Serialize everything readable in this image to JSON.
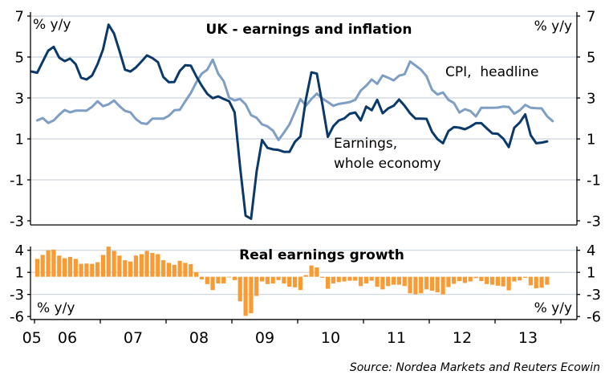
{
  "chart_data": [
    {
      "type": "line",
      "title": "UK - earnings and inflation",
      "ylabel_left": "% y/y",
      "ylabel_right": "% y/y",
      "ylim": [
        -3.2,
        7
      ],
      "yticks": [
        7,
        5,
        3,
        1,
        -1,
        -3
      ],
      "ytick_labels": [
        "7",
        "5",
        "3",
        "1",
        "-1",
        "-3"
      ],
      "grid": true,
      "frequency": "monthly",
      "series": [
        {
          "label": "CPI,  headline",
          "start": "2006-01",
          "color": "#7e9ec4",
          "values": [
            1.9,
            2.02,
            1.78,
            1.9,
            2.18,
            2.41,
            2.3,
            2.38,
            2.38,
            2.38,
            2.57,
            2.84,
            2.6,
            2.69,
            2.88,
            2.6,
            2.37,
            2.3,
            1.97,
            1.77,
            1.73,
            1.99,
            1.99,
            1.99,
            2.13,
            2.4,
            2.42,
            2.84,
            3.24,
            3.76,
            4.19,
            4.38,
            4.87,
            4.19,
            3.82,
            3.01,
            2.88,
            2.95,
            2.69,
            2.16,
            2.03,
            1.71,
            1.61,
            1.4,
            0.95,
            1.31,
            1.71,
            2.32,
            2.95,
            2.62,
            2.95,
            3.21,
            2.97,
            2.8,
            2.62,
            2.71,
            2.75,
            2.8,
            2.91,
            3.36,
            3.6,
            3.9,
            3.69,
            4.1,
            3.99,
            3.86,
            4.09,
            4.16,
            4.78,
            4.58,
            4.38,
            4.06,
            3.4,
            3.17,
            3.27,
            2.91,
            2.75,
            2.29,
            2.45,
            2.36,
            2.1,
            2.52,
            2.52,
            2.52,
            2.53,
            2.58,
            2.56,
            2.23,
            2.4,
            2.66,
            2.52,
            2.5,
            2.49,
            2.1,
            1.87
          ]
        },
        {
          "label_lines": [
            "Earnings,",
            "whole economy"
          ],
          "start": "2005-12",
          "color": "#0b3a6a",
          "values": [
            4.29,
            4.23,
            4.78,
            5.31,
            5.5,
            4.97,
            4.8,
            4.92,
            4.65,
            3.99,
            3.9,
            4.1,
            4.65,
            5.37,
            6.58,
            6.15,
            5.3,
            4.38,
            4.29,
            4.49,
            4.78,
            5.08,
            4.95,
            4.75,
            4.02,
            3.77,
            3.78,
            4.32,
            4.6,
            4.58,
            4.06,
            3.6,
            3.2,
            2.99,
            3.08,
            2.95,
            2.84,
            2.3,
            -0.4,
            -2.75,
            -2.9,
            -0.6,
            0.95,
            0.56,
            0.49,
            0.46,
            0.37,
            0.37,
            0.86,
            1.12,
            2.95,
            4.25,
            4.19,
            2.69,
            1.1,
            1.62,
            1.9,
            2.0,
            2.23,
            2.29,
            1.9,
            2.58,
            2.4,
            2.91,
            2.25,
            2.49,
            2.62,
            2.92,
            2.62,
            2.25,
            1.99,
            1.99,
            1.98,
            1.35,
            0.99,
            0.79,
            1.38,
            1.58,
            1.55,
            1.47,
            1.6,
            1.77,
            1.77,
            1.51,
            1.27,
            1.25,
            1.01,
            0.6,
            1.54,
            1.8,
            2.2,
            1.18,
            0.79,
            0.82,
            0.88
          ]
        }
      ]
    },
    {
      "type": "bar",
      "title": "Real earnings growth",
      "ylabel_left": "% y/y",
      "ylabel_right": "% y/y",
      "ylim": [
        -6.45,
        4
      ],
      "yticks": [
        4,
        0.667,
        -2.667,
        -6
      ],
      "ytick_labels": [
        "4",
        "1",
        "-3",
        "-6"
      ],
      "grid": true,
      "frequency": "monthly",
      "series": [
        {
          "start": "2006-01",
          "color": "#f99a32",
          "values": [
            2.7,
            3.3,
            4.0,
            4.1,
            3.2,
            2.8,
            3.0,
            2.7,
            1.95,
            2.0,
            1.95,
            2.2,
            3.3,
            4.55,
            3.9,
            3.2,
            2.5,
            2.3,
            3.2,
            3.4,
            3.9,
            3.6,
            3.4,
            2.5,
            2.1,
            1.8,
            2.4,
            2.1,
            1.9,
            0.7,
            -0.4,
            -1.1,
            -2.0,
            -1.0,
            -1.0,
            -0.1,
            -0.5,
            -3.7,
            -5.9,
            -5.5,
            -2.9,
            -0.7,
            -1.1,
            -1.0,
            -0.5,
            -1.0,
            -1.5,
            -1.6,
            -2.0,
            0.25,
            1.7,
            1.4,
            -0.15,
            -1.8,
            -1.0,
            -0.8,
            -0.7,
            -0.6,
            -0.6,
            -1.4,
            -1.0,
            -0.6,
            -1.5,
            -1.9,
            -1.4,
            -1.2,
            -1.2,
            -1.4,
            -2.5,
            -2.65,
            -2.5,
            -1.9,
            -2.1,
            -2.35,
            -2.65,
            -1.55,
            -1.05,
            -0.65,
            -0.95,
            -0.7,
            -0.2,
            -0.65,
            -1.1,
            -1.2,
            -1.35,
            -1.45,
            -2.05,
            -0.7,
            -0.55,
            -0.15,
            -1.3,
            -1.75,
            -1.65,
            -1.2
          ]
        }
      ]
    }
  ],
  "x_axis": {
    "xlim": [
      2005.94,
      2014.24
    ],
    "year_ticks": [
      2006,
      2007,
      2008,
      2009,
      2010,
      2011,
      2012,
      2013,
      2014
    ],
    "labels": [
      {
        "text": "05",
        "at": 2005.96
      },
      {
        "text": "06",
        "at": 2006.5
      },
      {
        "text": "07",
        "at": 2007.5
      },
      {
        "text": "08",
        "at": 2008.5
      },
      {
        "text": "09",
        "at": 2009.5
      },
      {
        "text": "10",
        "at": 2010.5
      },
      {
        "text": "11",
        "at": 2011.5
      },
      {
        "text": "12",
        "at": 2012.5
      },
      {
        "text": "13",
        "at": 2013.5
      }
    ]
  },
  "source": "Source: Nordea Markets and Reuters Ecowin"
}
